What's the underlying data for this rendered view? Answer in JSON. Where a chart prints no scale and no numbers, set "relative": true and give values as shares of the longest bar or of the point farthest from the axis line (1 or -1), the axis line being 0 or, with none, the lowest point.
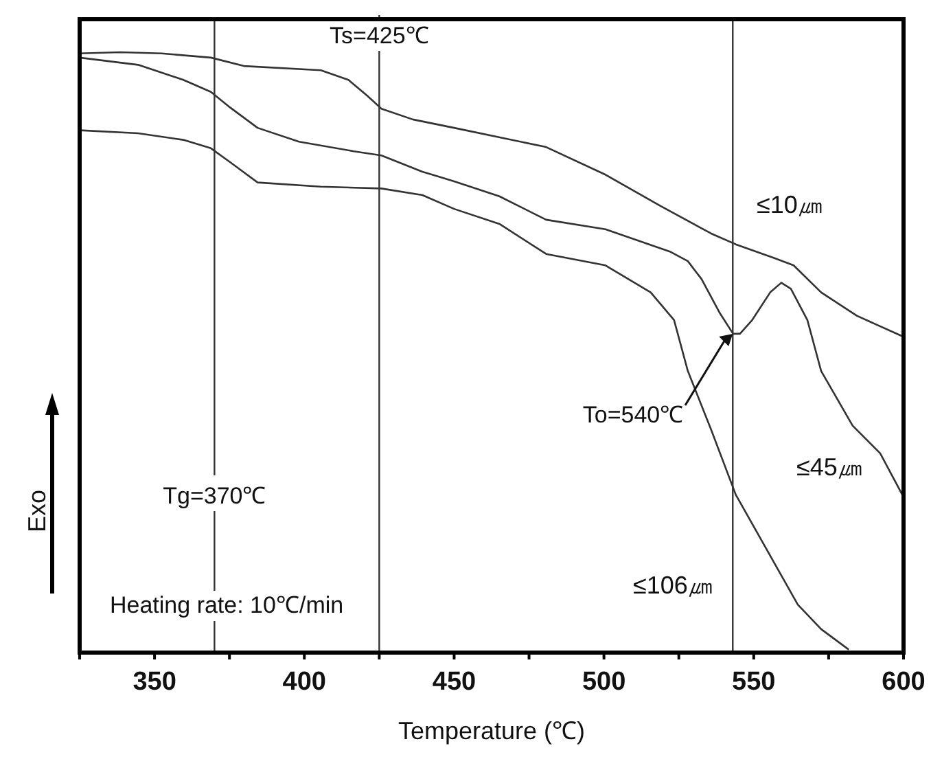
{
  "chart_data": {
    "type": "line",
    "relative": true,
    "xlabel": "Temperature (℃)",
    "ylabel": "Exo",
    "xlim": [
      325,
      600
    ],
    "xticks": [
      {
        "value": 325,
        "label": null
      },
      350,
      {
        "value": 375,
        "label": null
      },
      400,
      {
        "value": 425,
        "label": null
      },
      450,
      {
        "value": 475,
        "label": null
      },
      500,
      {
        "value": 525,
        "label": null
      },
      550,
      {
        "value": 575,
        "label": null
      },
      600
    ],
    "series": [
      {
        "name": "≤10㎛",
        "color": "#333333",
        "x": [
          325,
          338.5,
          352.3,
          368.8,
          379.8,
          405.5,
          414.7,
          421.1,
          425.7,
          436.2,
          450,
          480.7,
          500.5,
          518.8,
          535.8,
          544,
          556.9,
          563.3,
          572.5,
          584.4,
          600
        ],
        "values": [
          0.998,
          1,
          0.998,
          0.991,
          0.977,
          0.97,
          0.954,
          0.927,
          0.906,
          0.888,
          0.874,
          0.842,
          0.796,
          0.744,
          0.698,
          0.68,
          0.657,
          0.645,
          0.6,
          0.561,
          0.526
        ]
      },
      {
        "name": "≤45㎛",
        "color": "#333333",
        "x": [
          325,
          344.5,
          359.6,
          368.8,
          375.2,
          384.4,
          398.2,
          416.5,
          425.7,
          439.4,
          450,
          465.1,
          480.7,
          500.5,
          522,
          528,
          532.6,
          538.5,
          543.1,
          545.4,
          549.5,
          555.5,
          559.2,
          562.4,
          567.9,
          572.5,
          583,
          592.2,
          600
        ],
        "values": [
          0.991,
          0.979,
          0.954,
          0.934,
          0.908,
          0.874,
          0.851,
          0.835,
          0.828,
          0.801,
          0.785,
          0.76,
          0.721,
          0.705,
          0.668,
          0.652,
          0.622,
          0.567,
          0.531,
          0.531,
          0.554,
          0.6,
          0.616,
          0.606,
          0.554,
          0.469,
          0.378,
          0.332,
          0.259
        ]
      },
      {
        "name": "≤106㎛",
        "color": "#333333",
        "x": [
          325,
          344.5,
          359.6,
          368.8,
          375.2,
          384.4,
          405.5,
          425.7,
          439.4,
          450,
          465.1,
          480.7,
          500.5,
          515.6,
          523.4,
          528,
          535.8,
          544,
          564.7,
          572.5,
          581.7
        ],
        "values": [
          0.87,
          0.865,
          0.854,
          0.84,
          0.817,
          0.783,
          0.776,
          0.773,
          0.762,
          0.739,
          0.714,
          0.664,
          0.645,
          0.6,
          0.554,
          0.469,
          0.371,
          0.263,
          0.08,
          0.039,
          0.005
        ]
      }
    ],
    "ref_lines": [
      {
        "axis": "x",
        "value": 370,
        "label": "Tg=370℃",
        "color": "#333333"
      },
      {
        "axis": "x",
        "value": 425,
        "label": "Ts=425℃",
        "color": "#333333"
      },
      {
        "axis": "x",
        "value": 543,
        "color": "#333333"
      }
    ],
    "annotations": [
      {
        "text": "To=540℃",
        "x": 543,
        "y": 0.531
      },
      "Heating rate: 10℃/min"
    ],
    "grid": false,
    "marker": "none",
    "line_style": "solid"
  }
}
